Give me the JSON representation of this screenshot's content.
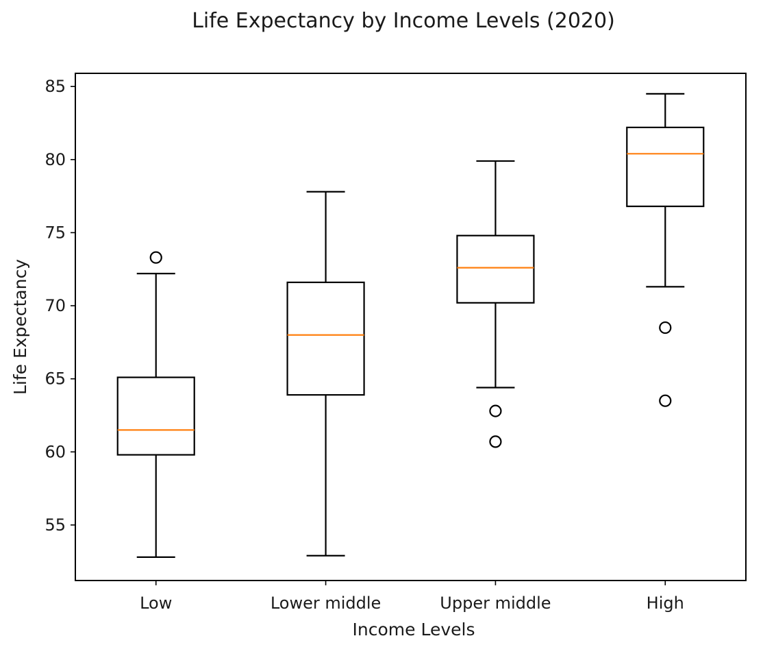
{
  "chart_data": {
    "type": "box",
    "title": "Life Expectancy by Income Levels (2020)",
    "xlabel": "Income Levels",
    "ylabel": "Life Expectancy",
    "ylim": [
      51.2,
      85.9
    ],
    "yticks": [
      55,
      60,
      65,
      70,
      75,
      80,
      85
    ],
    "grid": false,
    "categories": [
      "Low",
      "Lower middle",
      "Upper middle",
      "High"
    ],
    "boxes": [
      {
        "category": "Low",
        "whisker_low": 52.8,
        "q1": 59.8,
        "median": 61.5,
        "q3": 65.1,
        "whisker_high": 72.2,
        "outliers": [
          73.3
        ]
      },
      {
        "category": "Lower middle",
        "whisker_low": 52.9,
        "q1": 63.9,
        "median": 68.0,
        "q3": 71.6,
        "whisker_high": 77.8,
        "outliers": []
      },
      {
        "category": "Upper middle",
        "whisker_low": 64.4,
        "q1": 70.2,
        "median": 72.6,
        "q3": 74.8,
        "whisker_high": 79.9,
        "outliers": [
          62.8,
          60.7
        ]
      },
      {
        "category": "High",
        "whisker_low": 71.3,
        "q1": 76.8,
        "median": 80.4,
        "q3": 82.2,
        "whisker_high": 84.5,
        "outliers": [
          68.5,
          63.5
        ]
      }
    ],
    "colors": {
      "box": "#000000",
      "median": "#ff7f0e",
      "background": "#ffffff"
    }
  }
}
